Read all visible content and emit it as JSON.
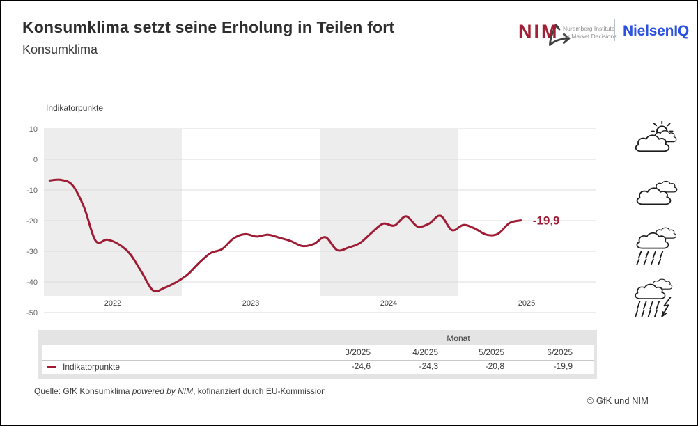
{
  "header": {
    "title": "Konsumklima setzt seine Erholung in Teilen fort",
    "subtitle": "Konsumklima"
  },
  "logos": {
    "nim_name": "NIM",
    "nim_subtitle_line1": "Nuremberg Institute",
    "nim_subtitle_line2": "for Market Decisions",
    "nielseniq": "NielsenIQ"
  },
  "colors": {
    "line": "#9e1b33",
    "nim_red": "#a41e35",
    "niq_blue": "#2b51e0",
    "band": "#ededed",
    "grid": "#dcdcdc",
    "axis_text": "#646464",
    "year_text": "#3c3c3c"
  },
  "chart_data": {
    "type": "line",
    "ylabel": "Indikatorpunkte",
    "ylim": [
      -50,
      10
    ],
    "yticks": [
      10,
      0,
      -10,
      -20,
      -30,
      -40,
      -50
    ],
    "year_labels": [
      "2022",
      "2023",
      "2024",
      "2025"
    ],
    "shaded_year_indices": [
      0,
      2
    ],
    "grid": true,
    "legend_position": "table-below",
    "end_label": "-19,9",
    "months": [
      "1/2022",
      "2/2022",
      "3/2022",
      "4/2022",
      "5/2022",
      "6/2022",
      "7/2022",
      "8/2022",
      "9/2022",
      "10/2022",
      "11/2022",
      "12/2022",
      "1/2023",
      "2/2023",
      "3/2023",
      "4/2023",
      "5/2023",
      "6/2023",
      "7/2023",
      "8/2023",
      "9/2023",
      "10/2023",
      "11/2023",
      "12/2023",
      "1/2024",
      "2/2024",
      "3/2024",
      "4/2024",
      "5/2024",
      "6/2024",
      "7/2024",
      "8/2024",
      "9/2024",
      "10/2024",
      "11/2024",
      "12/2024",
      "1/2025",
      "2/2025",
      "3/2025",
      "4/2025",
      "5/2025",
      "6/2025"
    ],
    "series": [
      {
        "name": "Indikatorpunkte",
        "values": [
          -6.9,
          -6.7,
          -8.5,
          -15.7,
          -26.6,
          -26.2,
          -27.7,
          -30.9,
          -36.8,
          -42.8,
          -41.9,
          -40.1,
          -37.6,
          -33.8,
          -30.6,
          -29.3,
          -25.8,
          -24.4,
          -25.2,
          -24.6,
          -25.6,
          -26.7,
          -28.3,
          -27.6,
          -25.4,
          -29.6,
          -28.8,
          -27.3,
          -24.0,
          -21.0,
          -21.6,
          -18.6,
          -21.9,
          -21.0,
          -18.4,
          -23.1,
          -21.4,
          -22.6,
          -24.6,
          -24.3,
          -20.8,
          -19.9
        ]
      }
    ]
  },
  "weather_icons": [
    "sun-cloud",
    "cloudy",
    "rain",
    "thunderstorm"
  ],
  "table": {
    "group_header": "Monat",
    "columns": [
      "3/2025",
      "4/2025",
      "5/2025",
      "6/2025"
    ],
    "row": {
      "label": "Indikatorpunkte",
      "values": [
        "-24,6",
        "-24,3",
        "-20,8",
        "-19,9"
      ]
    }
  },
  "footer": {
    "source_prefix": "Quelle: GfK Konsumklima ",
    "source_italic": "powered by NIM",
    "source_suffix": ", kofinanziert durch EU-Kommission",
    "copyright": "© GfK und NIM"
  }
}
